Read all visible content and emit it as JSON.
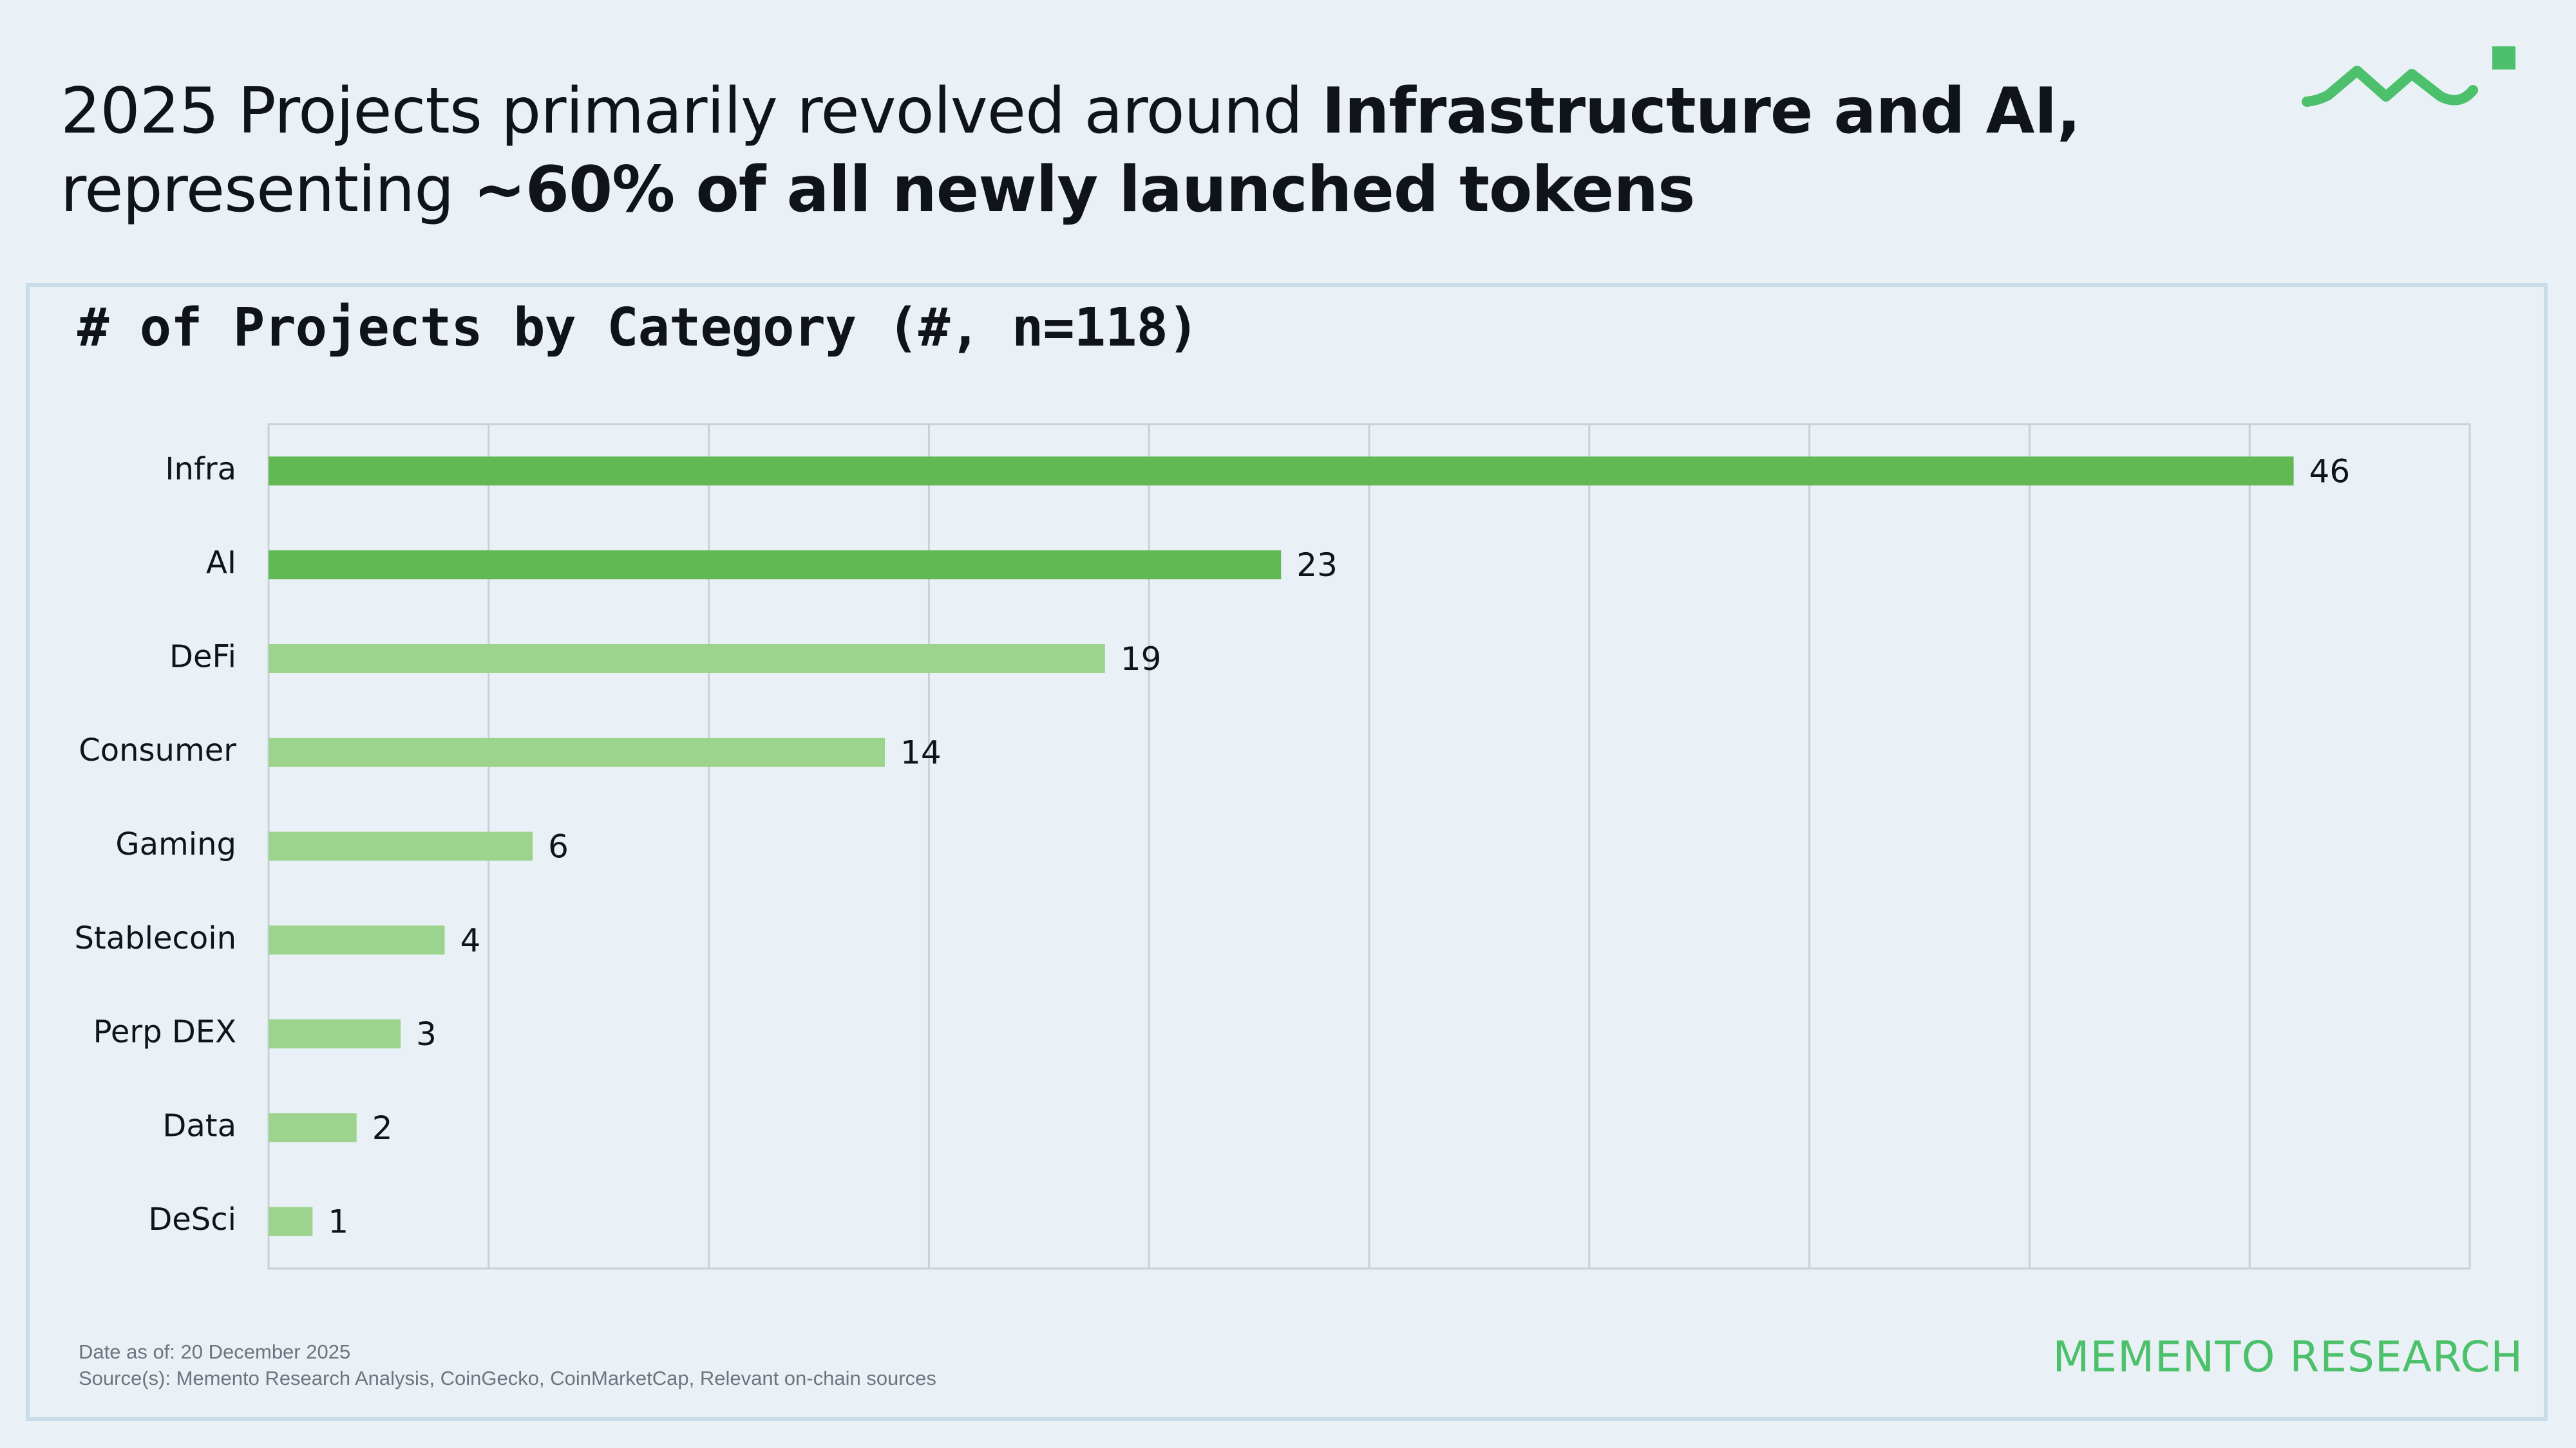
{
  "headline": {
    "line1_regular": "2025 Projects primarily revolved around ",
    "line1_bold": "Infrastructure and AI,",
    "line2_regular": "representing ",
    "line2_bold": "~60% of all newly launched tokens"
  },
  "colors": {
    "background": "#e9f1f7",
    "accent_dark": "#62b853",
    "accent_light": "#9cd38d",
    "brand": "#4cc06a",
    "grid": "#c9d0d6"
  },
  "logo": {
    "icon": "memento-wave-logo-icon"
  },
  "chart_data": {
    "type": "bar",
    "orientation": "horizontal",
    "title": "# of Projects by Category (#, n=118)",
    "categories": [
      "Infra",
      "AI",
      "DeFi",
      "Consumer",
      "Gaming",
      "Stablecoin",
      "Perp DEX",
      "Data",
      "DeSci"
    ],
    "values": [
      46,
      23,
      19,
      14,
      6,
      4,
      3,
      2,
      1
    ],
    "highlight": [
      "dark",
      "dark",
      "light",
      "light",
      "light",
      "light",
      "light",
      "light",
      "light"
    ],
    "xlim": [
      0,
      50
    ],
    "x_grid_step": 5,
    "grid": true,
    "data_labels": [
      "46",
      "23",
      "19",
      "14",
      "6",
      "4",
      "3",
      "2",
      "1"
    ],
    "xlabel": "",
    "ylabel": ""
  },
  "footer": {
    "date_note": "Date as of: 20 December 2025",
    "sources": "Source(s): Memento Research Analysis, CoinGecko, CoinMarketCap, Relevant on-chain sources",
    "brand": "MEMENTO RESEARCH"
  }
}
